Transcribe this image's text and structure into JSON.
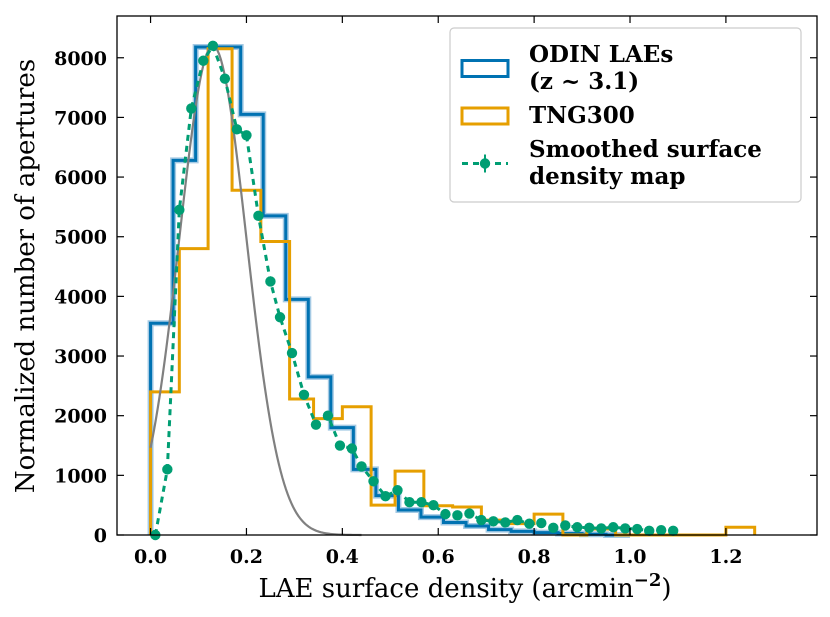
{
  "chart_data": {
    "type": "histogram",
    "xlabel": "LAE surface density (arcmin",
    "xlabel_superscript": "−2",
    "xlabel_close": ")",
    "ylabel": "Normalized number of apertures",
    "xlim": [
      -0.07,
      1.39
    ],
    "ylim": [
      0,
      8700
    ],
    "xticks": [
      {
        "value": 0.0,
        "label": "0.0"
      },
      {
        "value": 0.2,
        "label": "0.2"
      },
      {
        "value": 0.4,
        "label": "0.4"
      },
      {
        "value": 0.6,
        "label": "0.6"
      },
      {
        "value": 0.8,
        "label": "0.8"
      },
      {
        "value": 1.0,
        "label": "1.0"
      },
      {
        "value": 1.2,
        "label": "1.2"
      }
    ],
    "yticks": [
      {
        "value": 0,
        "label": "0"
      },
      {
        "value": 1000,
        "label": "1000"
      },
      {
        "value": 2000,
        "label": "2000"
      },
      {
        "value": 3000,
        "label": "3000"
      },
      {
        "value": 4000,
        "label": "4000"
      },
      {
        "value": 5000,
        "label": "5000"
      },
      {
        "value": 6000,
        "label": "6000"
      },
      {
        "value": 7000,
        "label": "7000"
      },
      {
        "value": 8000,
        "label": "8000"
      }
    ],
    "series": [
      {
        "name": "ODIN LAEs (z ~ 3.1)",
        "legend_lines": [
          "ODIN LAEs",
          " (z  ~  3.1)"
        ],
        "kind": "step",
        "color": "#0072B2",
        "band_color": "#7fb3d9",
        "edges": [
          0.0,
          0.047,
          0.094,
          0.141,
          0.188,
          0.235,
          0.282,
          0.329,
          0.376,
          0.423,
          0.47,
          0.517,
          0.564,
          0.611,
          0.658,
          0.705,
          0.752,
          0.8,
          0.85,
          0.9,
          0.95,
          1.0
        ],
        "values": [
          3550,
          6280,
          8180,
          8180,
          7050,
          5350,
          3950,
          2650,
          1800,
          1100,
          660,
          420,
          300,
          210,
          150,
          90,
          60,
          40,
          25,
          12,
          0
        ]
      },
      {
        "name": "TNG300",
        "legend_lines": [
          "TNG300"
        ],
        "kind": "step",
        "color": "#E69F00",
        "edges": [
          0.0,
          0.06,
          0.12,
          0.17,
          0.23,
          0.29,
          0.34,
          0.4,
          0.46,
          0.51,
          0.57,
          0.63,
          0.69,
          0.74,
          0.8,
          0.86,
          0.91,
          0.97,
          1.03,
          1.09,
          1.14,
          1.2,
          1.26
        ],
        "values": [
          2400,
          4800,
          8150,
          5780,
          4920,
          2280,
          1950,
          2150,
          500,
          1070,
          490,
          470,
          250,
          190,
          350,
          0,
          100,
          0,
          0,
          0,
          0,
          130
        ]
      },
      {
        "name": "Smoothed surface density map",
        "legend_lines": [
          "Smoothed surface",
          "density map"
        ],
        "kind": "line-points",
        "color": "#009E73",
        "x": [
          0.01,
          0.035,
          0.06,
          0.085,
          0.11,
          0.13,
          0.155,
          0.18,
          0.2,
          0.225,
          0.25,
          0.27,
          0.295,
          0.32,
          0.345,
          0.37,
          0.395,
          0.42,
          0.44,
          0.465,
          0.49,
          0.515,
          0.54,
          0.565,
          0.59,
          0.615,
          0.64,
          0.665,
          0.69,
          0.715,
          0.74,
          0.765,
          0.79,
          0.815,
          0.84,
          0.865,
          0.89,
          0.915,
          0.94,
          0.965,
          0.99,
          1.015,
          1.04,
          1.065,
          1.09
        ],
        "y": [
          0,
          1100,
          5450,
          7150,
          7950,
          8200,
          7650,
          6800,
          6700,
          5350,
          4250,
          3650,
          3050,
          2350,
          1850,
          2000,
          1500,
          1450,
          1150,
          900,
          650,
          750,
          550,
          550,
          500,
          350,
          330,
          360,
          250,
          230,
          210,
          250,
          190,
          200,
          120,
          160,
          130,
          120,
          110,
          130,
          110,
          100,
          70,
          80,
          70
        ]
      },
      {
        "name": "Gaussian fit",
        "kind": "gaussian",
        "color": "#808080",
        "amplitude": 8200,
        "mu": 0.13,
        "sigma": 0.07,
        "x_start": 0.0,
        "x_end": 0.44
      }
    ],
    "legend_position": "top-right"
  }
}
